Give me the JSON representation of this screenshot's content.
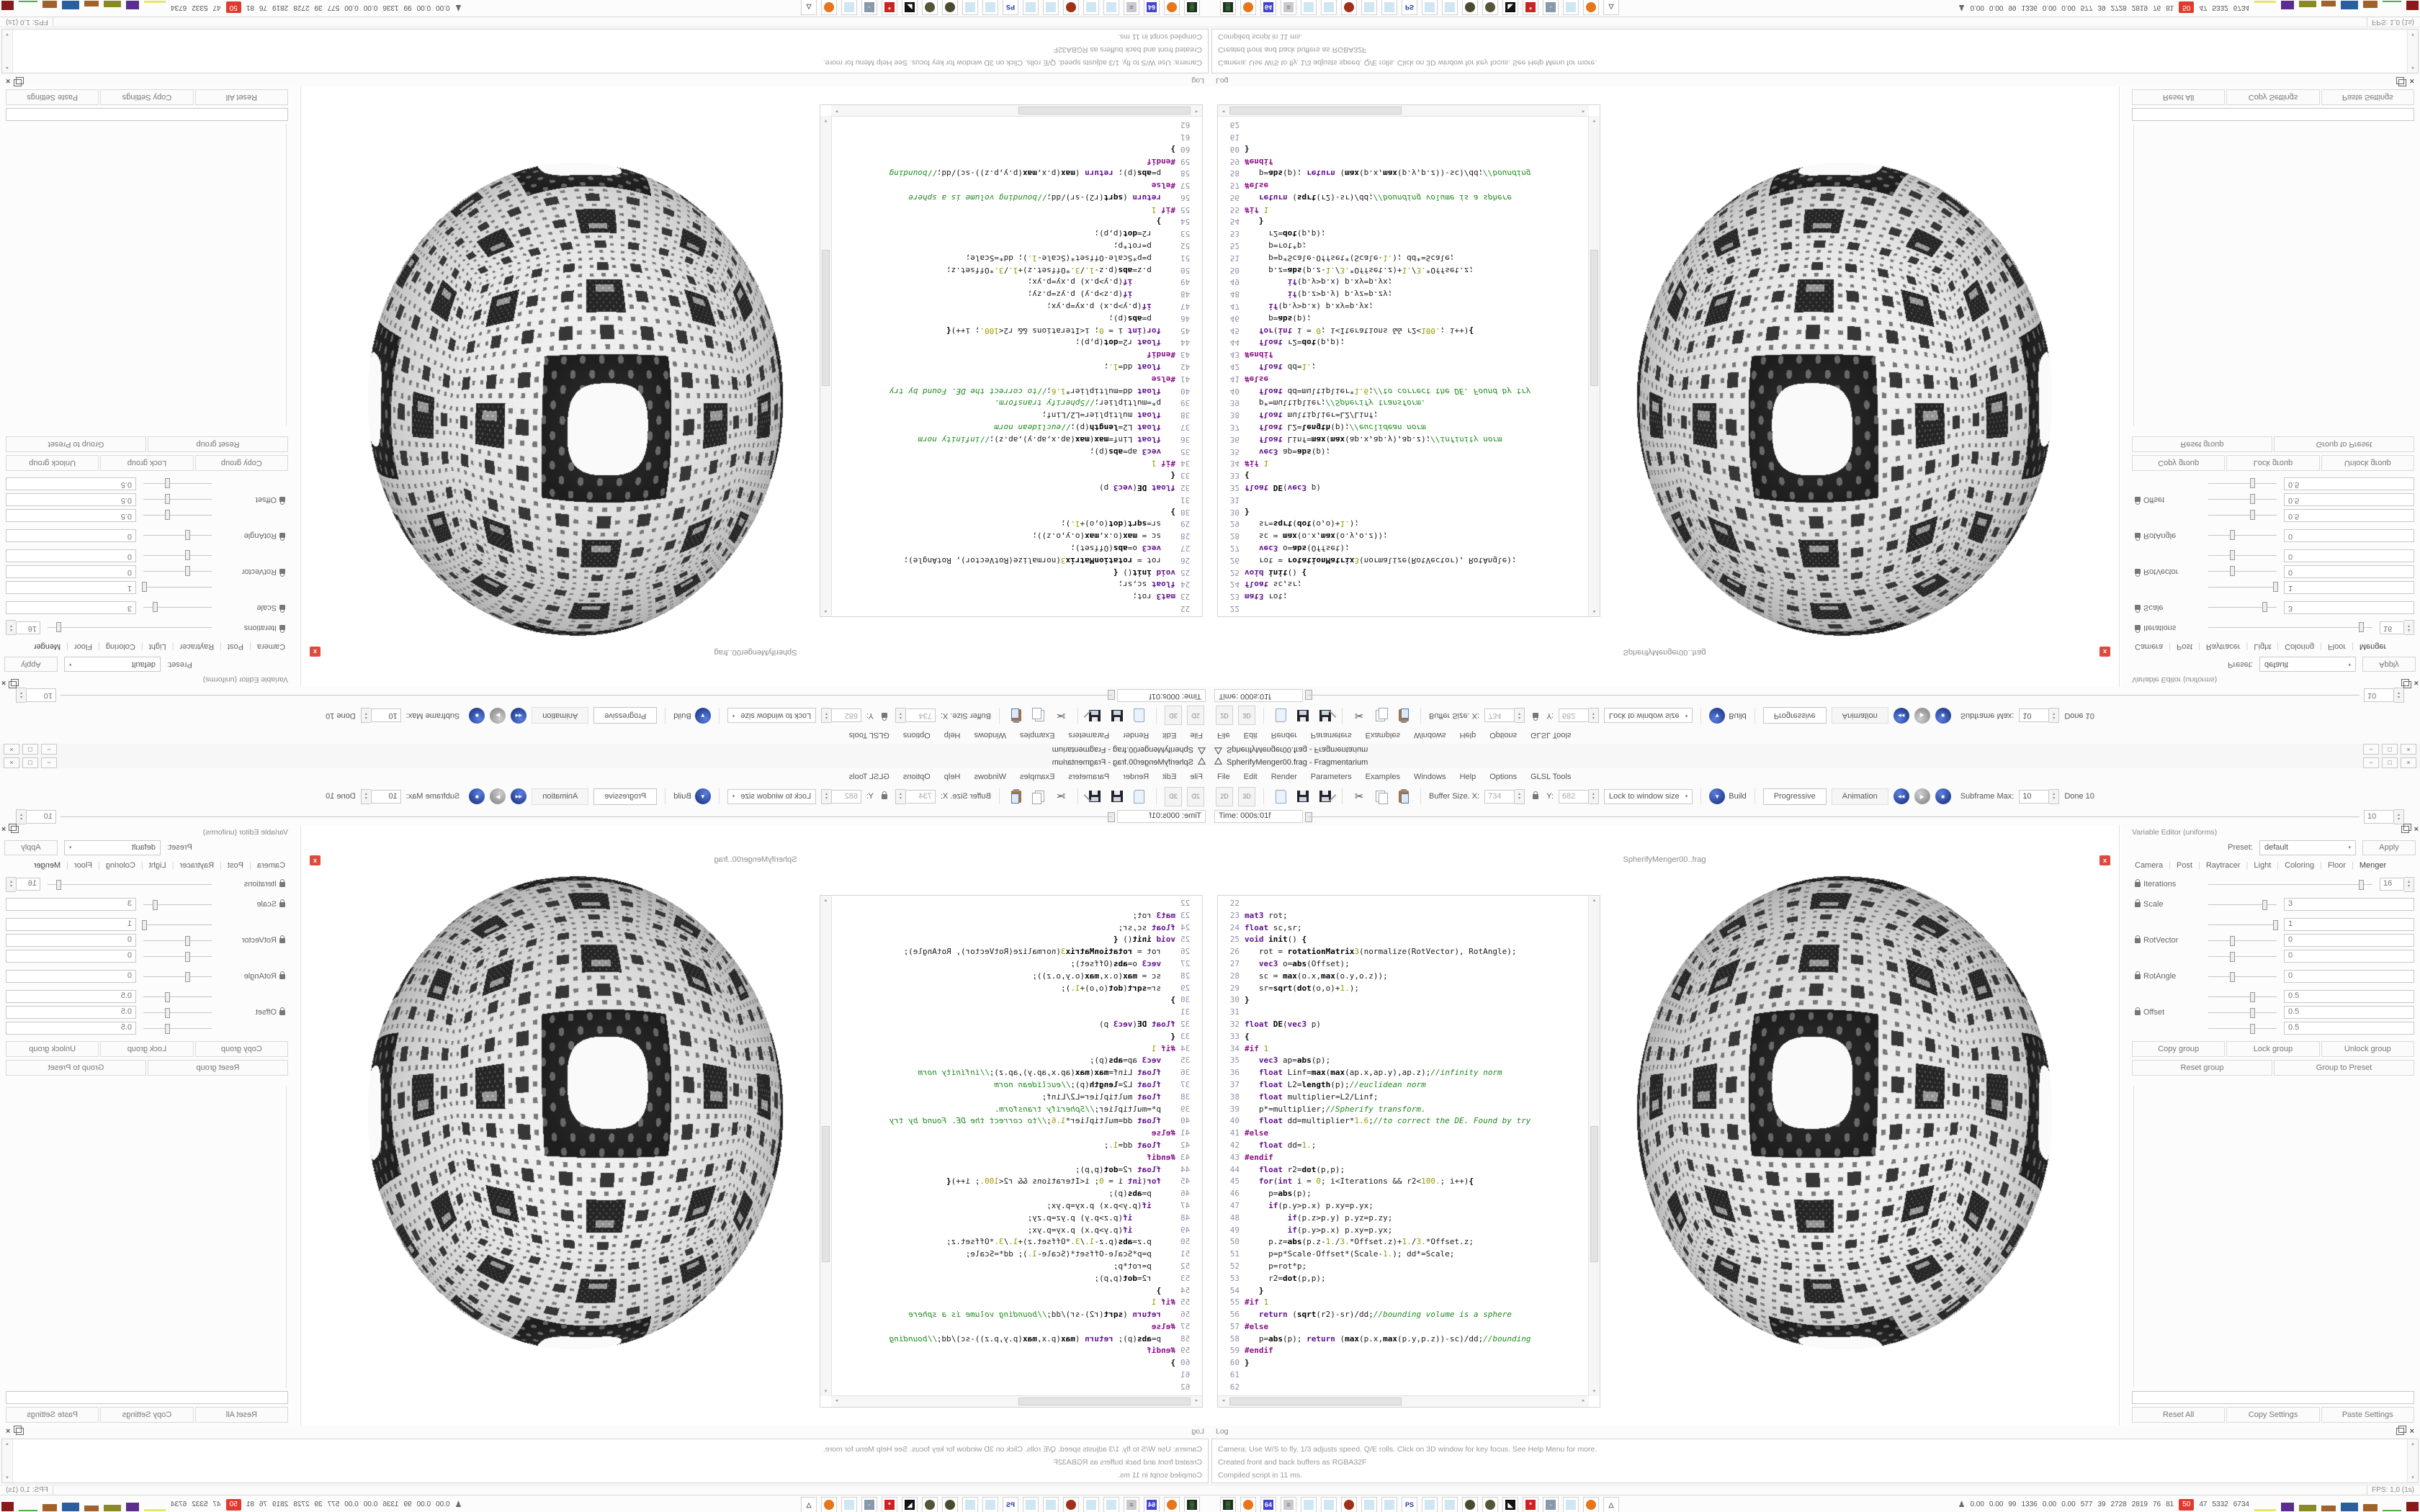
{
  "window": {
    "title": "SpherifyMenger00.frag - Fragmentarium",
    "controls": [
      "−",
      "□",
      "×"
    ]
  },
  "menu": [
    "File",
    "Edit",
    "Render",
    "Parameters",
    "Examples",
    "Windows",
    "Help",
    "Options",
    "GLSL Tools"
  ],
  "toolbar": {
    "btn_2d": "2D",
    "btn_3d": "3D",
    "buffer_label": "Buffer Size. X:",
    "buffer_x": "734",
    "buffer_y_label": "Y:",
    "buffer_y": "682",
    "lock_combo": "Lock to window size",
    "build_label": "Build",
    "progressive_label": "Progressive",
    "animation_label": "Animation",
    "subframe_label": "Subframe Max:",
    "subframe_value": "10",
    "done_label": "Done 10"
  },
  "time_row": {
    "label": "Time: 000s:01f",
    "spin_value": "10"
  },
  "mdi": {
    "doc_title": "SpherifyMenger00..frag",
    "close_glyph": "x"
  },
  "editor": {
    "lines": [
      {
        "n": "22",
        "t": []
      },
      {
        "n": "23",
        "t": [
          [
            "k",
            "mat3"
          ],
          [
            "",
            " rot;"
          ]
        ]
      },
      {
        "n": "24",
        "t": [
          [
            "k",
            "float"
          ],
          [
            "",
            " sc,sr;"
          ]
        ]
      },
      {
        "n": "25",
        "t": [
          [
            "k",
            "void"
          ],
          [
            "",
            " "
          ],
          [
            "f",
            "init"
          ],
          [
            "",
            "() "
          ],
          [
            "f",
            "{"
          ]
        ]
      },
      {
        "n": "26",
        "t": [
          [
            "",
            "   rot = "
          ],
          [
            "f",
            "rotationMatrix"
          ],
          [
            "n",
            "3"
          ],
          [
            "",
            "(normalize(RotVector), RotAngle);"
          ]
        ]
      },
      {
        "n": "27",
        "t": [
          [
            "",
            "   "
          ],
          [
            "k",
            "vec3"
          ],
          [
            "",
            " o="
          ],
          [
            "f",
            "abs"
          ],
          [
            "",
            "(Offset);"
          ]
        ]
      },
      {
        "n": "28",
        "t": [
          [
            "",
            "   sc = "
          ],
          [
            "f",
            "max"
          ],
          [
            "",
            "(o.x,"
          ],
          [
            "f",
            "max"
          ],
          [
            "",
            "(o.y,o.z));"
          ]
        ]
      },
      {
        "n": "29",
        "t": [
          [
            "",
            "   sr="
          ],
          [
            "f",
            "sqrt"
          ],
          [
            "",
            "("
          ],
          [
            "f",
            "dot"
          ],
          [
            "",
            "(o,o)+"
          ],
          [
            "n",
            "1."
          ],
          [
            "",
            ");"
          ]
        ]
      },
      {
        "n": "30",
        "t": [
          [
            "f",
            "}"
          ]
        ]
      },
      {
        "n": "31",
        "t": []
      },
      {
        "n": "32",
        "t": [
          [
            "k",
            "float"
          ],
          [
            "",
            " "
          ],
          [
            "f",
            "DE"
          ],
          [
            "",
            "("
          ],
          [
            "k",
            "vec3"
          ],
          [
            "",
            " p)"
          ]
        ]
      },
      {
        "n": "33",
        "t": [
          [
            "f",
            "{"
          ]
        ]
      },
      {
        "n": "34",
        "t": [
          [
            "p",
            "#if"
          ],
          [
            "",
            " "
          ],
          [
            "n",
            "1"
          ]
        ]
      },
      {
        "n": "35",
        "t": [
          [
            "",
            "   "
          ],
          [
            "k",
            "vec3"
          ],
          [
            "",
            " ap="
          ],
          [
            "f",
            "abs"
          ],
          [
            "",
            "(p);"
          ]
        ]
      },
      {
        "n": "36",
        "t": [
          [
            "",
            "   "
          ],
          [
            "k",
            "float"
          ],
          [
            "",
            " Linf="
          ],
          [
            "f",
            "max"
          ],
          [
            "",
            "("
          ],
          [
            "f",
            "max"
          ],
          [
            "",
            "(ap.x,ap.y),ap.z);"
          ],
          [
            "c",
            "//infinity norm"
          ]
        ]
      },
      {
        "n": "37",
        "t": [
          [
            "",
            "   "
          ],
          [
            "k",
            "float"
          ],
          [
            "",
            " L2="
          ],
          [
            "f",
            "length"
          ],
          [
            "",
            "(p);"
          ],
          [
            "c",
            "//euclidean norm"
          ]
        ]
      },
      {
        "n": "38",
        "t": [
          [
            "",
            "   "
          ],
          [
            "k",
            "float"
          ],
          [
            "",
            " multiplier=L2/Linf;"
          ]
        ]
      },
      {
        "n": "39",
        "t": [
          [
            "",
            "   p*=multiplier;"
          ],
          [
            "c",
            "//Spherify transform."
          ]
        ]
      },
      {
        "n": "40",
        "t": [
          [
            "",
            "   "
          ],
          [
            "k",
            "float"
          ],
          [
            "",
            " dd=multiplier*"
          ],
          [
            "n",
            "1.6"
          ],
          [
            "",
            ";"
          ],
          [
            "c",
            "//to correct the DE. Found by try"
          ]
        ]
      },
      {
        "n": "41",
        "t": [
          [
            "p",
            "#else"
          ]
        ]
      },
      {
        "n": "42",
        "t": [
          [
            "",
            "   "
          ],
          [
            "k",
            "float"
          ],
          [
            "",
            " dd="
          ],
          [
            "n",
            "1."
          ],
          [
            "",
            ";"
          ]
        ]
      },
      {
        "n": "43",
        "t": [
          [
            "p",
            "#endif"
          ]
        ]
      },
      {
        "n": "44",
        "t": [
          [
            "",
            "   "
          ],
          [
            "k",
            "float"
          ],
          [
            "",
            " r2="
          ],
          [
            "f",
            "dot"
          ],
          [
            "",
            "(p,p);"
          ]
        ]
      },
      {
        "n": "45",
        "t": [
          [
            "",
            "   "
          ],
          [
            "k",
            "for"
          ],
          [
            "",
            "("
          ],
          [
            "k",
            "int"
          ],
          [
            "",
            " i = "
          ],
          [
            "n",
            "0"
          ],
          [
            "",
            "; i<Iterations && r2<"
          ],
          [
            "n",
            "100."
          ],
          [
            "",
            "; i++)"
          ],
          [
            "f",
            "{"
          ]
        ]
      },
      {
        "n": "46",
        "t": [
          [
            "",
            "     p="
          ],
          [
            "f",
            "abs"
          ],
          [
            "",
            "(p);"
          ]
        ]
      },
      {
        "n": "47",
        "t": [
          [
            "",
            "     "
          ],
          [
            "k",
            "if"
          ],
          [
            "",
            "(p.y>p.x) p.xy=p.yx;"
          ]
        ]
      },
      {
        "n": "48",
        "t": [
          [
            "",
            "         "
          ],
          [
            "k",
            "if"
          ],
          [
            "",
            "(p.z>p.y) p.yz=p.zy;"
          ]
        ]
      },
      {
        "n": "49",
        "t": [
          [
            "",
            "         "
          ],
          [
            "k",
            "if"
          ],
          [
            "",
            "(p.y>p.x) p.xy=p.yx;"
          ]
        ]
      },
      {
        "n": "50",
        "t": [
          [
            "",
            "     p.z="
          ],
          [
            "f",
            "abs"
          ],
          [
            "",
            "(p.z-"
          ],
          [
            "n",
            "1."
          ],
          [
            "",
            "/"
          ],
          [
            "n",
            "3."
          ],
          [
            "",
            "*Offset.z)+"
          ],
          [
            "n",
            "1."
          ],
          [
            "",
            "/"
          ],
          [
            "n",
            "3."
          ],
          [
            "",
            "*Offset.z;"
          ]
        ]
      },
      {
        "n": "51",
        "t": [
          [
            "",
            "     p=p*Scale-Offset*(Scale-"
          ],
          [
            "n",
            "1."
          ],
          [
            "",
            "); dd*=Scale;"
          ]
        ]
      },
      {
        "n": "52",
        "t": [
          [
            "",
            "     p=rot*p;"
          ]
        ]
      },
      {
        "n": "53",
        "t": [
          [
            "",
            "     r2="
          ],
          [
            "f",
            "dot"
          ],
          [
            "",
            "(p,p);"
          ]
        ]
      },
      {
        "n": "54",
        "t": [
          [
            "",
            "   "
          ],
          [
            "f",
            "}"
          ]
        ]
      },
      {
        "n": "55",
        "t": [
          [
            "p",
            "#if"
          ],
          [
            "",
            " "
          ],
          [
            "n",
            "1"
          ]
        ]
      },
      {
        "n": "56",
        "t": [
          [
            "",
            "   "
          ],
          [
            "k",
            "return"
          ],
          [
            "",
            " ("
          ],
          [
            "f",
            "sqrt"
          ],
          [
            "",
            "(r2)-sr)/dd;"
          ],
          [
            "c",
            "//bounding volume is a sphere"
          ]
        ]
      },
      {
        "n": "57",
        "t": [
          [
            "p",
            "#else"
          ]
        ]
      },
      {
        "n": "58",
        "t": [
          [
            "",
            "   p="
          ],
          [
            "f",
            "abs"
          ],
          [
            "",
            "(p); "
          ],
          [
            "k",
            "return"
          ],
          [
            "",
            " ("
          ],
          [
            "f",
            "max"
          ],
          [
            "",
            "(p.x,"
          ],
          [
            "f",
            "max"
          ],
          [
            "",
            "(p.y,p.z))-sc)/dd;"
          ],
          [
            "c",
            "//bounding"
          ]
        ]
      },
      {
        "n": "59",
        "t": [
          [
            "p",
            "#endif"
          ]
        ]
      },
      {
        "n": "60",
        "t": [
          [
            "f",
            "}"
          ]
        ]
      },
      {
        "n": "61",
        "t": []
      },
      {
        "n": "62",
        "t": []
      }
    ]
  },
  "dock": {
    "title": "Variable Editor (uniforms)",
    "preset_label": "Preset:",
    "preset_value": "default",
    "apply_label": "Apply",
    "tabs": [
      "Camera",
      "Post",
      "Raytracer",
      "Light",
      "Coloring",
      "Floor",
      "Menger"
    ],
    "selected_tab": "Menger",
    "params": [
      {
        "label": "Iterations",
        "spin": true,
        "rows": [
          {
            "pos": 0.93,
            "value": "16"
          }
        ]
      },
      {
        "label": "Scale",
        "spin": false,
        "rows": [
          {
            "pos": 0.82,
            "value": "3"
          }
        ]
      },
      {
        "label": "RotVector",
        "spin": false,
        "rows": [
          {
            "pos": 0.98,
            "value": "1"
          },
          {
            "pos": 0.35,
            "value": "0"
          },
          {
            "pos": 0.35,
            "value": "0"
          }
        ]
      },
      {
        "label": "RotAngle",
        "spin": false,
        "rows": [
          {
            "pos": 0.35,
            "value": "0"
          }
        ]
      },
      {
        "label": "Offset",
        "spin": false,
        "rows": [
          {
            "pos": 0.64,
            "value": "0.5"
          },
          {
            "pos": 0.64,
            "value": "0.5"
          },
          {
            "pos": 0.64,
            "value": "0.5"
          }
        ]
      }
    ],
    "group_buttons": [
      "Copy group",
      "Lock group",
      "Unlock group"
    ],
    "group_buttons2": [
      "Reset group",
      "Group to Preset"
    ],
    "bottom_buttons": [
      "Reset All",
      "Copy Settings",
      "Paste Settings"
    ]
  },
  "log": {
    "title": "Log",
    "lines": [
      "Camera: Use W/S to fly. 1/3 adjusts speed. Q/E rolls. Click on 3D window for key focus. See Help Menu for more.",
      "Created front and back buffers as RGBA32F",
      "Compiled script in 11 ms."
    ]
  },
  "status": {
    "fps": "FPS: 1,0 (1s)"
  },
  "taskbar": {
    "icons": [
      {
        "name": "system-monitor",
        "shape": "square",
        "bg": "#1e2f1e",
        "text": "▒",
        "fg": "#66dd66"
      },
      {
        "name": "firefox",
        "shape": "circle",
        "bg": "#e8751a",
        "text": "",
        "fg": ""
      },
      {
        "name": "vice-c64-floppy",
        "shape": "square",
        "bg": "#4343d0",
        "text": "64",
        "fg": "#ffffff"
      },
      {
        "name": "printer-document",
        "shape": "square",
        "bg": "#c9c9cd",
        "text": "≡",
        "fg": "#667"
      },
      {
        "name": "notepad",
        "shape": "square",
        "bg": "#cfe7f2",
        "text": "",
        "fg": ""
      },
      {
        "name": "notepad",
        "shape": "square",
        "bg": "#cfe7f2",
        "text": "",
        "fg": ""
      },
      {
        "name": "bug-splat",
        "shape": "circle",
        "bg": "#a03018",
        "text": "",
        "fg": ""
      },
      {
        "name": "notepad",
        "shape": "square",
        "bg": "#cfe7f2",
        "text": "",
        "fg": ""
      },
      {
        "name": "notepad",
        "shape": "square",
        "bg": "#cfe7f2",
        "text": "",
        "fg": ""
      },
      {
        "name": "postscript-doc",
        "shape": "square",
        "bg": "#ffffff",
        "text": "PS",
        "fg": "#223a9a"
      },
      {
        "name": "notepad",
        "shape": "square",
        "bg": "#cfe7f2",
        "text": "",
        "fg": ""
      },
      {
        "name": "notepad",
        "shape": "square",
        "bg": "#cfe7f2",
        "text": "",
        "fg": ""
      },
      {
        "name": "textured-sphere",
        "shape": "circle",
        "bg": "#4a4a30",
        "text": "",
        "fg": ""
      },
      {
        "name": "textured-sphere",
        "shape": "circle",
        "bg": "#55553a",
        "text": "",
        "fg": ""
      },
      {
        "name": "bw-artwork",
        "shape": "square",
        "bg": "#111111",
        "text": "◣",
        "fg": "#ffffff"
      },
      {
        "name": "red-gear-package",
        "shape": "square",
        "bg": "#cc2222",
        "text": "*",
        "fg": "#ffffff"
      },
      {
        "name": "display-settings",
        "shape": "square",
        "bg": "#8899aa",
        "text": "▫",
        "fg": "#ddeeff"
      },
      {
        "name": "notepad",
        "shape": "square",
        "bg": "#cfe7f2",
        "text": "",
        "fg": ""
      },
      {
        "name": "firefox",
        "shape": "circle",
        "bg": "#e8751a",
        "text": "",
        "fg": ""
      },
      {
        "name": "fragmentarium",
        "shape": "square",
        "bg": "#ffffff",
        "text": "△",
        "fg": "#555555"
      }
    ],
    "tray": {
      "icon_glyph": "♟",
      "values": [
        "0.00",
        "0.00",
        "99",
        "1336",
        "0.00",
        "0.00",
        "577",
        "39",
        "2728",
        "2819",
        "76",
        "81"
      ],
      "alert_value": "50",
      "values2": [
        "47",
        "5332",
        "6734"
      ],
      "graphs": [
        {
          "c": "#e6e66a",
          "w": 30,
          "h": 3
        },
        {
          "c": "#5b2d8f",
          "w": 18,
          "h": 12
        },
        {
          "c": "#8a8a22",
          "w": 24,
          "h": 9
        },
        {
          "c": "#a0622a",
          "w": 20,
          "h": 8
        },
        {
          "c": "#2a5f9e",
          "w": 24,
          "h": 12
        },
        {
          "c": "#a0622a",
          "w": 20,
          "h": 10
        },
        {
          "c": "#55aa55",
          "w": 26,
          "h": 2
        },
        {
          "c": "#8a1a1a",
          "w": 17,
          "h": 13
        }
      ]
    }
  }
}
